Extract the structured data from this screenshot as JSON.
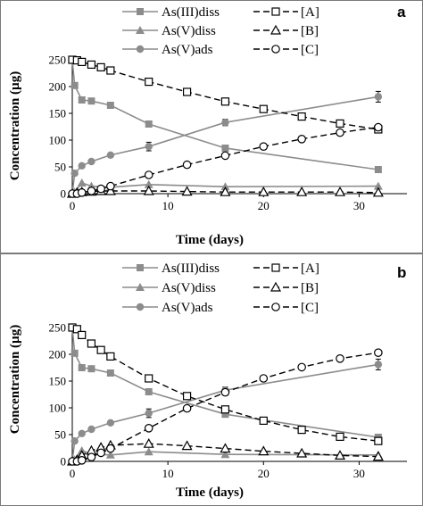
{
  "chart_data": [
    {
      "type": "line",
      "panel_label": "a",
      "xlabel": "Time (days)",
      "ylabel": "Concentration (µg)",
      "xlim": [
        0,
        35
      ],
      "ylim": [
        0,
        250
      ],
      "xticks": [
        "0",
        "10",
        "20",
        "30"
      ],
      "yticks": [
        "0",
        "50",
        "100",
        "150",
        "200",
        "250"
      ],
      "grid": false,
      "legend_position": "top",
      "series": [
        {
          "name": "As(III)diss",
          "style": "solid",
          "marker": "filled-square",
          "color": "#8c8c8c",
          "x": [
            0,
            0.25,
            1,
            2,
            4,
            8,
            16,
            32
          ],
          "y": [
            250,
            202,
            175,
            173,
            165,
            130,
            85,
            45
          ],
          "err": [
            0,
            0,
            0,
            0,
            0,
            0,
            0,
            0
          ]
        },
        {
          "name": "As(V)diss",
          "style": "solid",
          "marker": "filled-triangle",
          "color": "#8c8c8c",
          "x": [
            0,
            0.25,
            1,
            2,
            4,
            8,
            16,
            32
          ],
          "y": [
            0,
            3,
            20,
            14,
            12,
            17,
            13,
            14
          ],
          "err": [
            0,
            0,
            0,
            0,
            0,
            0,
            0,
            0
          ]
        },
        {
          "name": "As(V)ads",
          "style": "solid",
          "marker": "filled-circle",
          "color": "#8c8c8c",
          "x": [
            0,
            0.25,
            1,
            2,
            4,
            8,
            16,
            32
          ],
          "y": [
            0,
            38,
            52,
            60,
            72,
            88,
            133,
            181
          ],
          "err": [
            0,
            0,
            0,
            0,
            0,
            8,
            6,
            10
          ]
        },
        {
          "name": "[A]",
          "style": "dashed",
          "marker": "open-square",
          "color": "#000000",
          "x": [
            0,
            0.5,
            1,
            2,
            3,
            4,
            8,
            12,
            16,
            20,
            24,
            28,
            32
          ],
          "y": [
            250,
            249,
            246,
            241,
            236,
            230,
            209,
            190,
            172,
            158,
            144,
            131,
            120
          ],
          "err": []
        },
        {
          "name": "[B]",
          "style": "dashed",
          "marker": "open-triangle",
          "color": "#000000",
          "x": [
            0,
            0.5,
            1,
            2,
            3,
            4,
            8,
            12,
            16,
            20,
            24,
            28,
            32
          ],
          "y": [
            0,
            2,
            3,
            4,
            5,
            5,
            5,
            4,
            3,
            3,
            3,
            3,
            2
          ],
          "err": []
        },
        {
          "name": "[C]",
          "style": "dashed",
          "marker": "open-circle",
          "color": "#000000",
          "x": [
            0,
            0.5,
            1,
            2,
            3,
            4,
            8,
            12,
            16,
            20,
            24,
            28,
            32
          ],
          "y": [
            0,
            0,
            2,
            5,
            9,
            14,
            35,
            54,
            71,
            88,
            102,
            114,
            124
          ],
          "err": []
        }
      ]
    },
    {
      "type": "line",
      "panel_label": "b",
      "xlabel": "Time (days)",
      "ylabel": "Concentration (µg)",
      "xlim": [
        0,
        35
      ],
      "ylim": [
        0,
        250
      ],
      "xticks": [
        "0",
        "10",
        "20",
        "30"
      ],
      "yticks": [
        "0",
        "50",
        "100",
        "150",
        "200",
        "250"
      ],
      "grid": false,
      "legend_position": "top",
      "series": [
        {
          "name": "As(III)diss",
          "style": "solid",
          "marker": "filled-square",
          "color": "#8c8c8c",
          "x": [
            0,
            0.25,
            1,
            2,
            4,
            8,
            16,
            32
          ],
          "y": [
            250,
            202,
            175,
            173,
            165,
            130,
            88,
            45
          ],
          "err": [
            0,
            0,
            0,
            0,
            0,
            0,
            0,
            0
          ]
        },
        {
          "name": "As(V)diss",
          "style": "solid",
          "marker": "filled-triangle",
          "color": "#8c8c8c",
          "x": [
            0,
            0.25,
            1,
            2,
            4,
            8,
            16,
            32
          ],
          "y": [
            0,
            3,
            20,
            14,
            12,
            18,
            13,
            12
          ],
          "err": [
            0,
            0,
            0,
            0,
            0,
            0,
            0,
            0
          ]
        },
        {
          "name": "As(V)ads",
          "style": "solid",
          "marker": "filled-circle",
          "color": "#8c8c8c",
          "x": [
            0,
            0.25,
            1,
            2,
            4,
            8,
            16,
            32
          ],
          "y": [
            0,
            38,
            52,
            60,
            72,
            90,
            133,
            181
          ],
          "err": [
            0,
            0,
            0,
            0,
            0,
            8,
            6,
            10
          ]
        },
        {
          "name": "[A]",
          "style": "dashed",
          "marker": "open-square",
          "color": "#000000",
          "x": [
            0,
            0.5,
            1,
            2,
            3,
            4,
            8,
            12,
            16,
            20,
            24,
            28,
            32
          ],
          "y": [
            250,
            247,
            236,
            220,
            208,
            196,
            155,
            122,
            97,
            76,
            59,
            46,
            38
          ],
          "err": []
        },
        {
          "name": "[B]",
          "style": "dashed",
          "marker": "open-triangle",
          "color": "#000000",
          "x": [
            0,
            0.5,
            1,
            2,
            3,
            4,
            8,
            12,
            16,
            20,
            24,
            28,
            32
          ],
          "y": [
            0,
            3,
            11,
            20,
            26,
            30,
            33,
            29,
            24,
            19,
            15,
            11,
            9
          ],
          "err": []
        },
        {
          "name": "[C]",
          "style": "dashed",
          "marker": "open-circle",
          "color": "#000000",
          "x": [
            0,
            0.5,
            1,
            2,
            3,
            4,
            8,
            12,
            16,
            20,
            24,
            28,
            32
          ],
          "y": [
            0,
            0,
            2,
            8,
            16,
            24,
            62,
            99,
            129,
            155,
            176,
            192,
            203
          ],
          "err": []
        }
      ]
    }
  ]
}
